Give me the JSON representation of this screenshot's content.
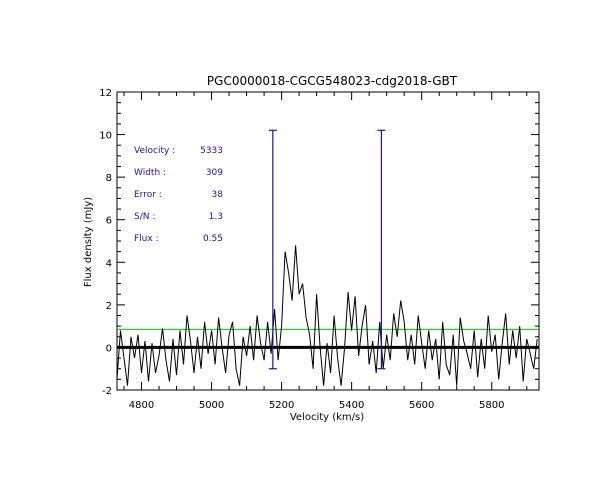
{
  "chart_data": {
    "type": "line",
    "title": "PGC0000018-CGCG548023-cdg2018-GBT",
    "xlabel": "Velocity (km/s)",
    "ylabel": "Flux density (mJy)",
    "xlim": [
      4730,
      5935
    ],
    "ylim": [
      -2,
      12
    ],
    "x_ticks": [
      4800,
      5000,
      5200,
      5400,
      5600,
      5800
    ],
    "y_ticks": [
      -2,
      0,
      2,
      4,
      6,
      8,
      10,
      12
    ],
    "grid": false,
    "series": [
      {
        "color": "#000000",
        "x": [
          4730,
          4740,
          4750,
          4760,
          4770,
          4780,
          4790,
          4800,
          4810,
          4820,
          4830,
          4840,
          4850,
          4860,
          4870,
          4880,
          4890,
          4900,
          4910,
          4920,
          4930,
          4940,
          4950,
          4960,
          4970,
          4980,
          4990,
          5000,
          5010,
          5020,
          5030,
          5040,
          5050,
          5060,
          5070,
          5080,
          5090,
          5100,
          5110,
          5120,
          5130,
          5140,
          5150,
          5160,
          5170,
          5180,
          5190,
          5200,
          5210,
          5220,
          5230,
          5240,
          5250,
          5260,
          5270,
          5280,
          5290,
          5300,
          5310,
          5320,
          5330,
          5340,
          5350,
          5360,
          5370,
          5380,
          5390,
          5400,
          5410,
          5420,
          5430,
          5440,
          5450,
          5460,
          5470,
          5480,
          5490,
          5500,
          5510,
          5520,
          5530,
          5540,
          5550,
          5560,
          5570,
          5580,
          5590,
          5600,
          5610,
          5620,
          5630,
          5640,
          5650,
          5660,
          5670,
          5680,
          5690,
          5700,
          5710,
          5720,
          5730,
          5740,
          5750,
          5760,
          5770,
          5780,
          5790,
          5800,
          5810,
          5820,
          5830,
          5840,
          5850,
          5860,
          5870,
          5880,
          5890,
          5900,
          5910,
          5920,
          5930
        ],
        "y": [
          -1.5,
          0.8,
          -0.5,
          -1.8,
          0.5,
          -0.5,
          0.6,
          -1.2,
          0.3,
          -1.6,
          0.2,
          -1.2,
          -0.4,
          0.9,
          -0.6,
          -1.6,
          0.4,
          -1.3,
          0.8,
          -0.8,
          1.5,
          0.3,
          -1.2,
          0.5,
          -1.0,
          1.2,
          -0.3,
          0.8,
          -0.8,
          1.4,
          0.0,
          -1.2,
          0.6,
          1.2,
          -1.0,
          -1.8,
          0.5,
          -0.4,
          1.0,
          -0.6,
          1.5,
          0.2,
          -0.6,
          1.2,
          -0.3,
          1.8,
          -0.6,
          1.0,
          4.5,
          3.5,
          2.2,
          4.8,
          2.5,
          3.0,
          1.4,
          0.6,
          -1.0,
          2.5,
          0.0,
          -1.8,
          0.2,
          -1.2,
          1.5,
          -0.5,
          -1.8,
          0.0,
          2.6,
          0.8,
          2.4,
          -0.4,
          1.0,
          2.0,
          -0.8,
          0.3,
          -1.2,
          1.2,
          -1.0,
          0.6,
          -0.6,
          1.6,
          0.5,
          2.2,
          1.2,
          -0.6,
          0.6,
          -0.8,
          1.5,
          0.2,
          -1.0,
          0.8,
          -0.6,
          0.4,
          -1.5,
          1.2,
          -0.8,
          -1.3,
          0.6,
          -1.8,
          1.4,
          0.3,
          -0.3,
          -1.0,
          0.8,
          -1.4,
          0.4,
          -1.0,
          1.5,
          -0.2,
          0.6,
          -1.5,
          0.2,
          1.6,
          -0.8,
          0.8,
          -0.5,
          1.0,
          -1.6,
          0.4,
          -0.3,
          -1.0,
          0.4
        ]
      }
    ],
    "zero_line": 0,
    "rms_line": 0.85,
    "markers": [
      {
        "x": 5175,
        "y_top": 10.2,
        "y_bottom": -1.0
      },
      {
        "x": 5485,
        "y_top": 10.2,
        "y_bottom": -1.0
      }
    ],
    "annotations": [
      {
        "label": "Velocity :",
        "value": "5333"
      },
      {
        "label": "Width :",
        "value": "309"
      },
      {
        "label": "Error :",
        "value": "38"
      },
      {
        "label": "S/N :",
        "value": "1.3"
      },
      {
        "label": "Flux :",
        "value": "0.55"
      }
    ],
    "colors": {
      "axes": "#000000",
      "spectrum": "#000000",
      "rms_line": "#00cc00",
      "markers": "#2a0ea0",
      "annotation_text": "#2a0ea0"
    }
  }
}
